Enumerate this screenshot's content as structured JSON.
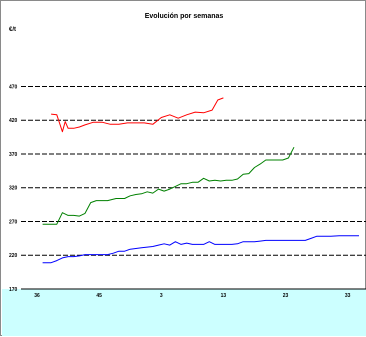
{
  "chart_data": {
    "type": "line",
    "title": "Evolución por semanas",
    "unit_label": "€/t",
    "ylim": [
      170,
      520
    ],
    "y_ticks": [
      170,
      220,
      270,
      320,
      370,
      420,
      470
    ],
    "x_tick_labels": [
      "36",
      "45",
      "3",
      "13",
      "23",
      "33"
    ],
    "xlim": [
      0,
      57
    ],
    "x_tick_positions": [
      0,
      11,
      22,
      33,
      44,
      55
    ],
    "grid": true,
    "background_lower": "#ccffff",
    "series": [
      {
        "color": "#ff0000",
        "x": [
          2.5,
          3.5,
          4.5,
          5,
          5.5,
          6.5,
          7.5,
          8.5,
          10,
          11.5,
          13,
          14.5,
          16,
          17.5,
          19,
          20.5,
          22,
          23.5,
          25,
          26.5,
          28,
          29.5,
          31,
          32,
          33
        ],
        "y": [
          429,
          428,
          403,
          418,
          408,
          408,
          410,
          413,
          417,
          417,
          414,
          414,
          416,
          416,
          416,
          414,
          424,
          428,
          423,
          428,
          432,
          431,
          435,
          450,
          453
        ]
      },
      {
        "color": "#008000",
        "x": [
          1,
          2.5,
          3.5,
          4.5,
          5.5,
          6.5,
          7.5,
          8.5,
          9.5,
          10.5,
          11.5,
          12.5,
          14,
          15.5,
          16.5,
          17.5,
          18.5,
          19.5,
          20.5,
          21.5,
          22.5,
          23.5,
          24.5,
          25.5,
          26.5,
          27.5,
          28.5,
          29.5,
          30.5,
          31.5,
          32.5,
          33.5,
          34.5,
          35.5,
          36.5,
          37.5,
          38.5,
          39.5,
          40.5,
          41.5,
          42.5,
          43.5,
          44.5,
          45.5
        ],
        "y": [
          266,
          266,
          266,
          283,
          279,
          279,
          278,
          282,
          298,
          301,
          301,
          301,
          304,
          304,
          308,
          310,
          311,
          314,
          312,
          318,
          315,
          318,
          322,
          326,
          326,
          328,
          328,
          334,
          330,
          331,
          330,
          331,
          331,
          333,
          340,
          341,
          350,
          355,
          361,
          361,
          361,
          361,
          364,
          380
        ]
      },
      {
        "color": "#0000ff",
        "x": [
          1,
          2.5,
          3.5,
          4.5,
          5.5,
          6.5,
          7.5,
          8.5,
          10,
          11.5,
          12.5,
          13.5,
          14.5,
          15.5,
          16.5,
          17.5,
          18.5,
          19.5,
          20.5,
          21.5,
          22.5,
          23.5,
          24.5,
          25.5,
          26.5,
          27.5,
          28.5,
          29.5,
          30.5,
          31.5,
          32.5,
          33.5,
          34.5,
          35.5,
          36.5,
          37.5,
          38.5,
          39.5,
          40.5,
          41.5,
          42.5,
          43.5,
          44.5,
          45.5,
          46.5,
          47.5,
          48.5,
          49.5,
          50.5,
          52,
          53.5,
          55,
          56.5,
          57
        ],
        "y": [
          209,
          209,
          212,
          216,
          218,
          218,
          219,
          221,
          221,
          221,
          221,
          223,
          226,
          226,
          229,
          230,
          231,
          232,
          233,
          235,
          237,
          235,
          240,
          236,
          238,
          236,
          236,
          236,
          240,
          236,
          236,
          236,
          236,
          237,
          240,
          240,
          240,
          241,
          242,
          242,
          242,
          242,
          242,
          242,
          242,
          242,
          245,
          248,
          248,
          248,
          249,
          249,
          249,
          249
        ]
      }
    ]
  }
}
